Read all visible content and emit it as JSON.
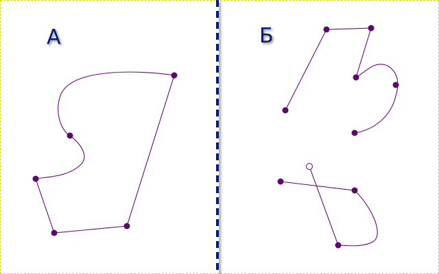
{
  "panels": {
    "left": {
      "label": "А"
    },
    "right": {
      "label": "Б"
    }
  },
  "colors": {
    "divider": "#0a1a7a",
    "label": "#0a1a7a",
    "curve": "#6a0a7a",
    "node": "#5a0a6a",
    "frame": "#d6d600"
  }
}
